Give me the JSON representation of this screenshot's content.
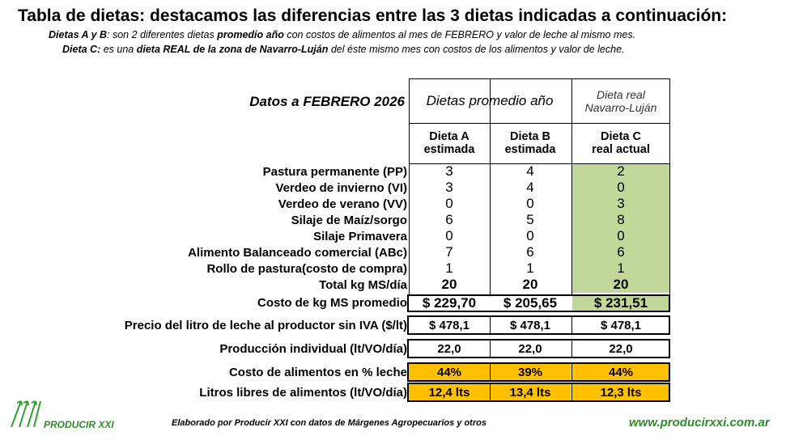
{
  "title": "Tabla de dietas: destacamos las diferencias entre las 3 dietas indicadas a continuación:",
  "sub1": {
    "b1": "Dietas A y B",
    "t1": ": son 2 diferentes dietas ",
    "b2": "promedio año",
    "t2": " con costos de alimentos al mes de FEBRERO y valor de leche al mismo mes."
  },
  "sub2": {
    "b1": "Dieta C:",
    "t1": " es una ",
    "b2": "dieta REAL de la zona de Navarro-Luján",
    "t2": " del éste mismo mes con costos de los alimentos y valor de leche."
  },
  "table": {
    "date_label": "Datos a FEBRERO 2026",
    "group_ab": "Dietas promedio año",
    "group_c": [
      "Dieta real",
      "Navarro-Luján"
    ],
    "cols": [
      [
        "Dieta A",
        "estimada"
      ],
      [
        "Dieta B",
        "estimada"
      ],
      [
        "Dieta C",
        "real actual"
      ]
    ],
    "rows": [
      {
        "label": "Pastura permanente (PP)",
        "v": [
          "3",
          "4",
          "2"
        ]
      },
      {
        "label": "Verdeo de invierno (VI)",
        "v": [
          "3",
          "4",
          "0"
        ]
      },
      {
        "label": "Verdeo de verano (VV)",
        "v": [
          "0",
          "0",
          "3"
        ]
      },
      {
        "label": "Silaje de Maíz/sorgo",
        "v": [
          "6",
          "5",
          "8"
        ]
      },
      {
        "label": "Silaje Primavera",
        "v": [
          "0",
          "0",
          "0"
        ]
      },
      {
        "label": "Alimento Balanceado comercial (ABc)",
        "v": [
          "7",
          "6",
          "6"
        ]
      },
      {
        "label": "Rollo de pastura(costo de compra)",
        "v": [
          "1",
          "1",
          "1"
        ]
      },
      {
        "label": "Total kg MS/día",
        "v": [
          "20",
          "20",
          "20"
        ]
      },
      {
        "label": "Costo de kg MS promedio",
        "v": [
          "$ 229,70",
          "$ 205,65",
          "$ 231,51"
        ]
      }
    ],
    "extra": [
      {
        "label": "Precio del litro de leche al productor sin IVA ($/lt)",
        "v": [
          "$ 478,1",
          "$ 478,1",
          "$ 478,1"
        ]
      },
      {
        "label": "Producción individual (lt/VO/día)",
        "v": [
          "22,0",
          "22,0",
          "22,0"
        ]
      },
      {
        "label": "Costo de alimentos en % leche",
        "v": [
          "44%",
          "39%",
          "44%"
        ]
      },
      {
        "label": "Litros libres de alimentos (lt/VO/día)",
        "v": [
          "12,4 lts",
          "13,4 lts",
          "12,3 lts"
        ]
      }
    ]
  },
  "footer": {
    "logo": "PRODUCIR XXI",
    "credit": "Elaborado por Producir XXI con datos de Márgenes Agropecuarios y otros",
    "url": "www.producirxxi.com.ar"
  },
  "colors": {
    "green": "#c4d79b",
    "orange": "#ffc000",
    "brand": "#2e8b2e"
  }
}
